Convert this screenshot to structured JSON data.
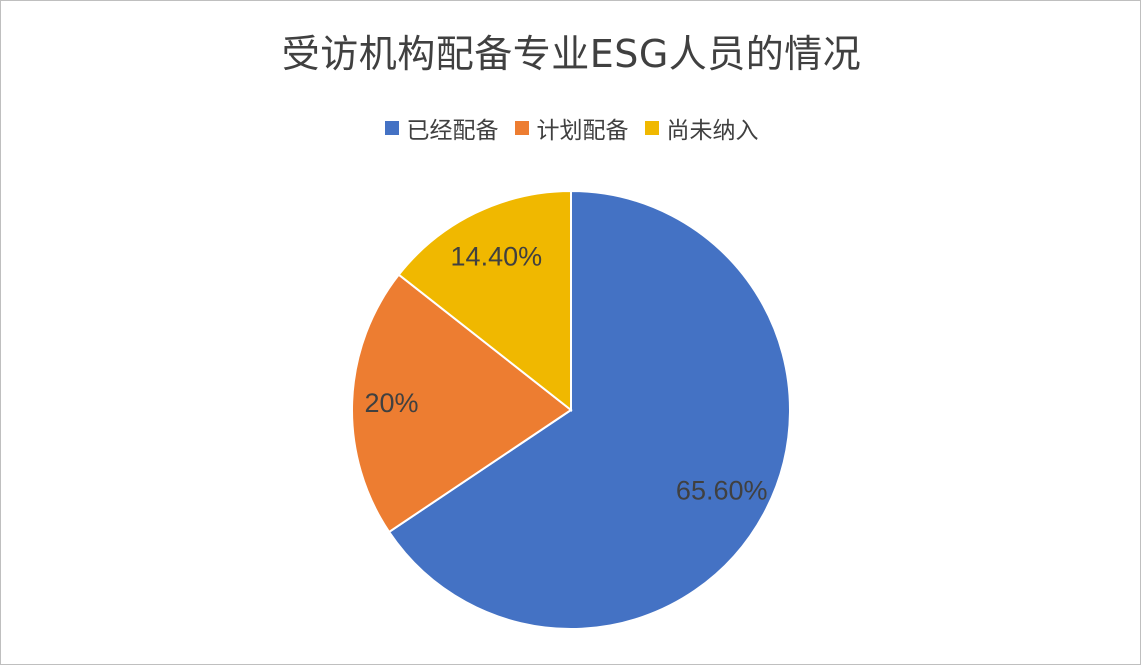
{
  "chart_data": {
    "type": "pie",
    "title": "受访机构配备专业ESG人员的情况",
    "categories": [
      "已经配备",
      "计划配备",
      "尚未纳入"
    ],
    "values": [
      65.6,
      20,
      14.4
    ],
    "data_labels": [
      "65.60%",
      "20%",
      "14.40%"
    ],
    "colors": [
      "#4472C4",
      "#ED7D31",
      "#F0B800"
    ],
    "legend_position": "top"
  }
}
